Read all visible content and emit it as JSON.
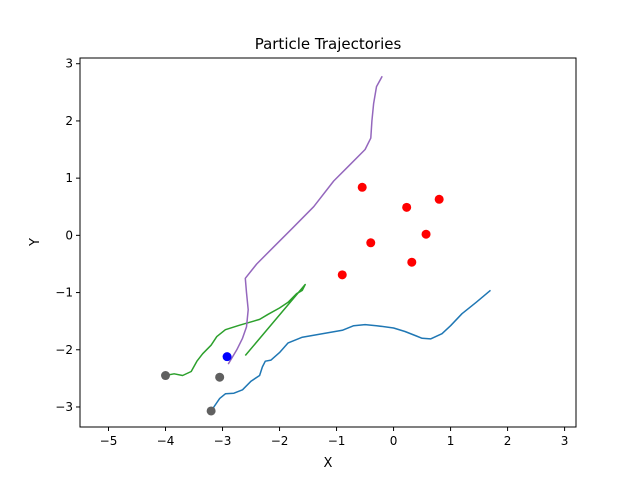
{
  "chart_data": {
    "type": "line",
    "title": "Particle Trajectories",
    "xlabel": "X",
    "ylabel": "Y",
    "xlim": [
      -5.5,
      3.2
    ],
    "ylim": [
      -3.35,
      3.1
    ],
    "x_ticks": [
      -5,
      -4,
      -3,
      -2,
      -1,
      0,
      1,
      2,
      3
    ],
    "y_ticks": [
      -3,
      -2,
      -1,
      0,
      1,
      2,
      3
    ],
    "grid": false,
    "legend": "none",
    "series": [
      {
        "color": "#1f77b4",
        "points": [
          [
            -3.2,
            -3.07
          ],
          [
            -3.05,
            -2.85
          ],
          [
            -2.95,
            -2.77
          ],
          [
            -2.8,
            -2.76
          ],
          [
            -2.65,
            -2.7
          ],
          [
            -2.5,
            -2.55
          ],
          [
            -2.35,
            -2.45
          ],
          [
            -2.3,
            -2.3
          ],
          [
            -2.25,
            -2.2
          ],
          [
            -2.15,
            -2.18
          ],
          [
            -2.0,
            -2.05
          ],
          [
            -1.85,
            -1.88
          ],
          [
            -1.6,
            -1.78
          ],
          [
            -1.3,
            -1.73
          ],
          [
            -0.9,
            -1.66
          ],
          [
            -0.7,
            -1.58
          ],
          [
            -0.5,
            -1.56
          ],
          [
            -0.3,
            -1.58
          ],
          [
            0.0,
            -1.62
          ],
          [
            0.2,
            -1.68
          ],
          [
            0.4,
            -1.76
          ],
          [
            0.5,
            -1.8
          ],
          [
            0.65,
            -1.81
          ],
          [
            0.85,
            -1.72
          ],
          [
            1.0,
            -1.58
          ],
          [
            1.2,
            -1.37
          ],
          [
            1.45,
            -1.17
          ],
          [
            1.7,
            -0.96
          ]
        ]
      },
      {
        "color": "#2ca02c",
        "points": [
          [
            -4.0,
            -2.45
          ],
          [
            -3.85,
            -2.42
          ],
          [
            -3.7,
            -2.45
          ],
          [
            -3.55,
            -2.38
          ],
          [
            -3.45,
            -2.2
          ],
          [
            -3.35,
            -2.07
          ],
          [
            -3.2,
            -1.92
          ],
          [
            -3.1,
            -1.77
          ],
          [
            -2.95,
            -1.65
          ],
          [
            -2.7,
            -1.57
          ],
          [
            -2.35,
            -1.47
          ],
          [
            -2.2,
            -1.38
          ],
          [
            -2.0,
            -1.27
          ],
          [
            -1.85,
            -1.17
          ],
          [
            -1.7,
            -1.02
          ],
          [
            -1.6,
            -0.96
          ],
          [
            -1.55,
            -0.86
          ],
          [
            -2.6,
            -2.1
          ]
        ]
      },
      {
        "color": "#9467bd",
        "points": [
          [
            -2.9,
            -2.25
          ],
          [
            -2.75,
            -2.0
          ],
          [
            -2.65,
            -1.8
          ],
          [
            -2.58,
            -1.6
          ],
          [
            -2.55,
            -1.3
          ],
          [
            -2.58,
            -1.0
          ],
          [
            -2.6,
            -0.75
          ],
          [
            -2.4,
            -0.5
          ],
          [
            -2.1,
            -0.2
          ],
          [
            -1.75,
            0.15
          ],
          [
            -1.4,
            0.5
          ],
          [
            -1.05,
            0.95
          ],
          [
            -0.8,
            1.2
          ],
          [
            -0.5,
            1.5
          ],
          [
            -0.4,
            1.7
          ],
          [
            -0.38,
            2.0
          ],
          [
            -0.35,
            2.3
          ],
          [
            -0.3,
            2.6
          ],
          [
            -0.2,
            2.78
          ]
        ]
      }
    ],
    "start_points": [
      {
        "x": -4.0,
        "y": -2.45,
        "color": "#606060"
      },
      {
        "x": -3.05,
        "y": -2.48,
        "color": "#606060"
      },
      {
        "x": -3.2,
        "y": -3.07,
        "color": "#606060"
      }
    ],
    "blue_points": [
      {
        "x": -2.92,
        "y": -2.12,
        "color": "#0000ff"
      }
    ],
    "red_points": [
      {
        "x": -0.55,
        "y": 0.84
      },
      {
        "x": 0.23,
        "y": 0.49
      },
      {
        "x": 0.8,
        "y": 0.63
      },
      {
        "x": -0.4,
        "y": -0.13
      },
      {
        "x": 0.57,
        "y": 0.02
      },
      {
        "x": -0.9,
        "y": -0.69
      },
      {
        "x": 0.32,
        "y": -0.47
      }
    ],
    "red_color": "#ff0000"
  }
}
